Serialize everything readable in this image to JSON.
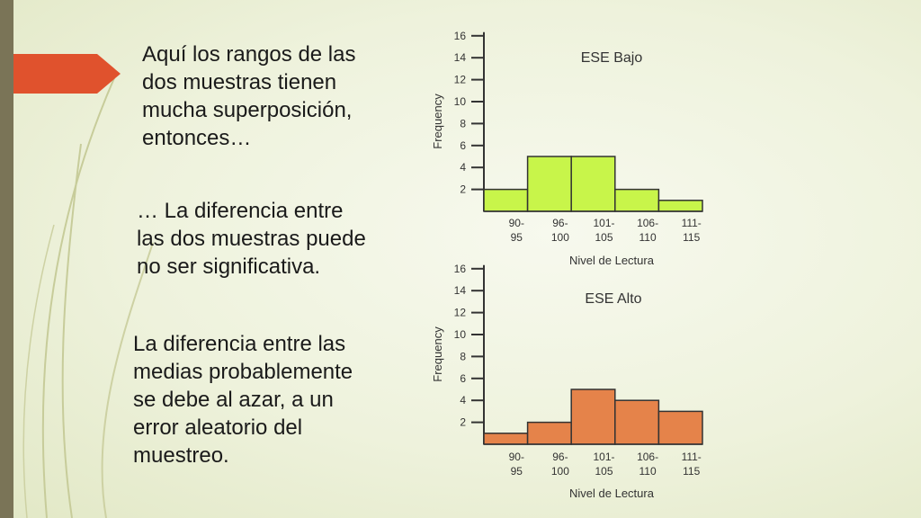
{
  "colors": {
    "left_bar": "#7a7457",
    "arrow": "#e0522d",
    "bars_top": "#c8f54a",
    "bars_bottom": "#e5834a",
    "bar_stroke": "#333333"
  },
  "slide": {
    "paragraphs": [
      "Aquí los rangos de las dos muestras tienen mucha superposición, entonces…",
      "… La diferencia entre las dos muestras puede no ser significativa.",
      "La diferencia entre las medias probablemente se debe al azar, a un error aleatorio del muestreo."
    ]
  },
  "chart_data": [
    {
      "type": "bar",
      "title": "ESE Bajo",
      "xlabel": "Nivel de Lectura",
      "ylabel": "Frequency",
      "categories": [
        "90-\n95",
        "96-\n100",
        "101-\n105",
        "106-\n110",
        "111-\n115"
      ],
      "values": [
        2,
        5,
        5,
        2,
        1
      ],
      "yticks": [
        2,
        4,
        6,
        8,
        10,
        12,
        14,
        16
      ],
      "ylim": [
        0,
        16
      ],
      "grid": false
    },
    {
      "type": "bar",
      "title": "ESE Alto",
      "xlabel": "Nivel de Lectura",
      "ylabel": "Frequency",
      "categories": [
        "90-\n95",
        "96-\n100",
        "101-\n105",
        "106-\n110",
        "111-\n115"
      ],
      "values": [
        1,
        2,
        5,
        4,
        3
      ],
      "yticks": [
        2,
        4,
        6,
        8,
        10,
        12,
        14,
        16
      ],
      "ylim": [
        0,
        16
      ],
      "grid": false
    }
  ]
}
